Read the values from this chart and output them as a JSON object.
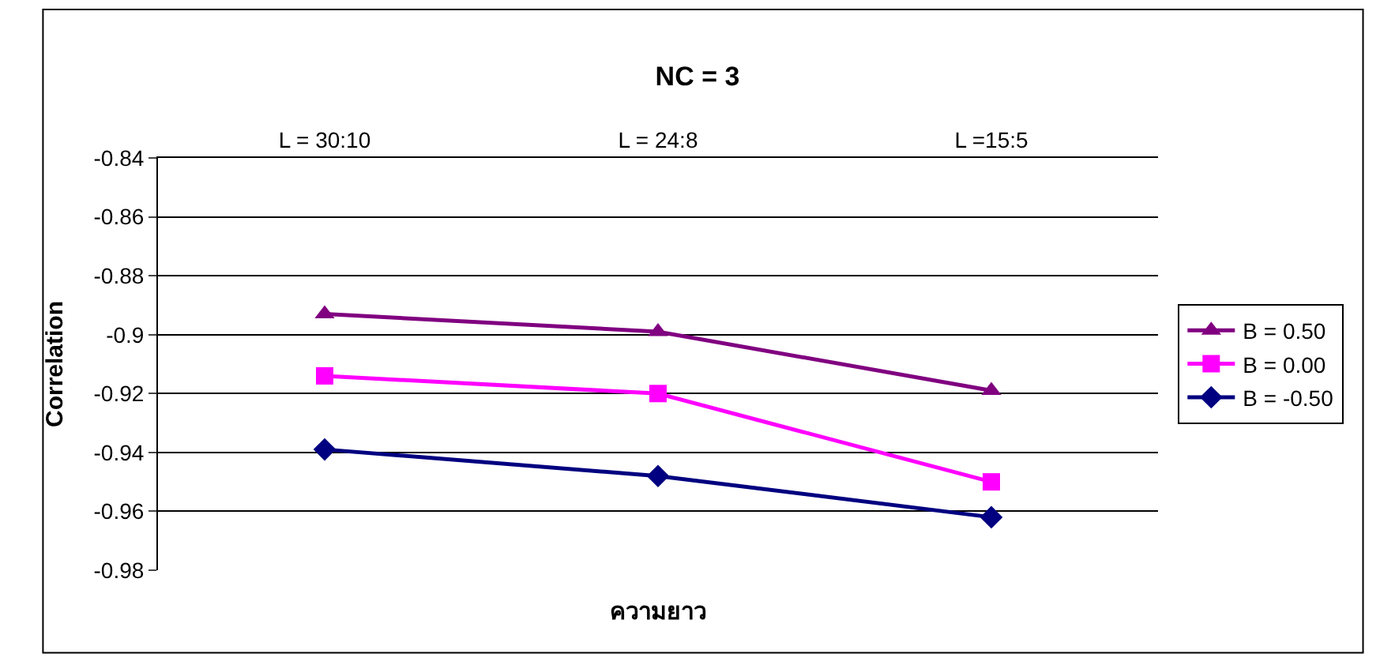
{
  "chart_data": {
    "type": "line",
    "title": "NC = 3",
    "xlabel": "ความยาว",
    "ylabel": "Correlation",
    "categories": [
      "L = 30:10",
      "L = 24:8",
      "L =15:5"
    ],
    "series": [
      {
        "name": "B = -0.50",
        "color": "#000080",
        "marker": "diamond",
        "values": [
          -0.939,
          -0.948,
          -0.962
        ]
      },
      {
        "name": "B = 0.00",
        "color": "#ff00ff",
        "marker": "square",
        "values": [
          -0.914,
          -0.92,
          -0.95
        ]
      },
      {
        "name": "B = 0.50",
        "color": "#800080",
        "marker": "triangle",
        "values": [
          -0.893,
          -0.899,
          -0.919
        ]
      }
    ],
    "ylim": [
      -0.98,
      -0.84
    ],
    "yticks": [
      -0.98,
      -0.96,
      -0.94,
      -0.92,
      -0.9,
      -0.88,
      -0.86,
      -0.84
    ],
    "grid": "y",
    "legend": "right",
    "line_style": "solid"
  }
}
